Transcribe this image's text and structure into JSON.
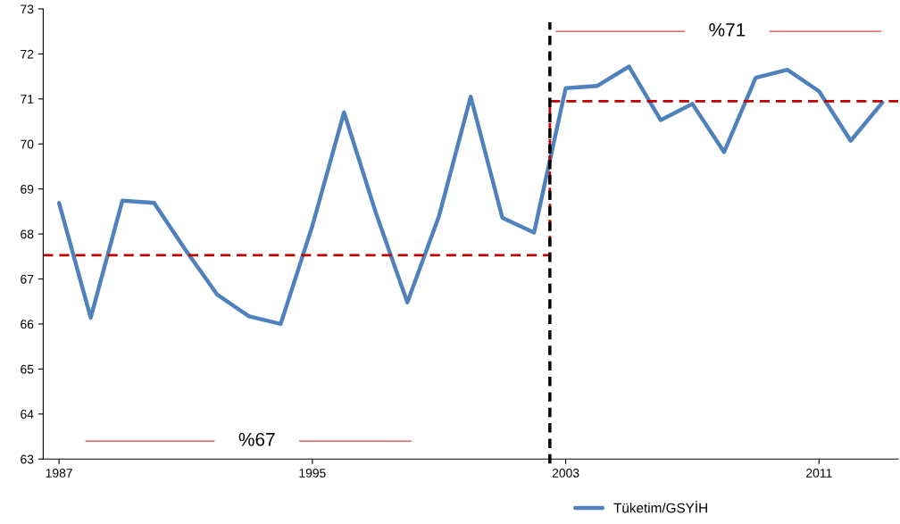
{
  "chart_data": {
    "type": "line",
    "x": [
      1987,
      1988,
      1989,
      1990,
      1991,
      1992,
      1993,
      1994,
      1995,
      1996,
      1997,
      1998,
      1999,
      2000,
      2001,
      2002,
      2003,
      2004,
      2005,
      2006,
      2007,
      2008,
      2009,
      2010,
      2011,
      2012,
      2013
    ],
    "series": [
      {
        "name": "Tüketim/GSYİH",
        "color": "#4f81bd",
        "values": [
          68.69,
          66.14,
          68.74,
          68.69,
          67.64,
          66.65,
          66.17,
          66.0,
          68.18,
          70.7,
          68.48,
          66.48,
          68.4,
          71.05,
          68.36,
          68.03,
          71.24,
          71.29,
          71.72,
          70.53,
          70.89,
          69.82,
          71.47,
          71.65,
          71.17,
          70.07,
          70.92
        ]
      },
      {
        "type": "step",
        "color": "#c00000",
        "line_style": "dashed",
        "x": [
          1986.5,
          2002.5,
          2013.5
        ],
        "values": [
          67.53,
          70.95,
          70.95
        ]
      }
    ],
    "xlim": [
      1986.5,
      2013.5
    ],
    "xticks": [
      1987,
      1995,
      2003,
      2011
    ],
    "ylim": [
      63,
      73
    ],
    "yticks": [
      63,
      64,
      65,
      66,
      67,
      68,
      69,
      70,
      71,
      72,
      73
    ],
    "ref_lines": [
      {
        "axis": "x",
        "value": 2002.5,
        "color": "#000000",
        "line_style": "dashed"
      }
    ],
    "annotations": [
      "%67",
      "%71"
    ],
    "grid": false,
    "legend": "bottom",
    "marker": "none",
    "line_style": "solid"
  }
}
